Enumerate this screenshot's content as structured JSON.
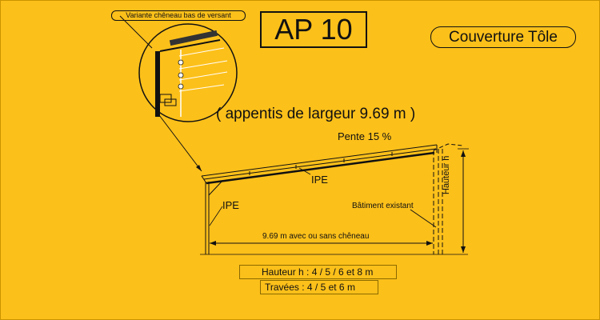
{
  "header": {
    "model": "AP 10",
    "covering": "Couverture Tôle",
    "variant": "Variante chêneau bas de versant"
  },
  "drawing": {
    "width_note": "( appentis de largeur 9.69 m )",
    "slope": "Pente 15 %",
    "rafter_label": "IPE",
    "post_label": "IPE",
    "existing_building": "Bâtiment existant",
    "span": "9.69 m avec ou sans chêneau",
    "height": "Hauteur h"
  },
  "specs": {
    "heights": "Hauteur h : 4 / 5 / 6 et  8  m",
    "bays": "Travées : 4 / 5  et  6  m"
  },
  "colors": {
    "background": "#fcc01a",
    "line": "#111111"
  }
}
